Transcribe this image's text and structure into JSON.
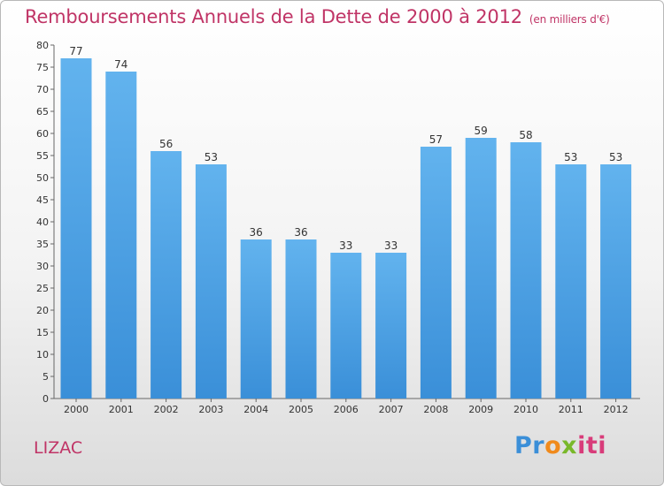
{
  "chart_data": {
    "type": "bar",
    "title": "Remboursements Annuels de la Dette de 2000 à 2012",
    "subtitle": "(en milliers d'€)",
    "categories": [
      "2000",
      "2001",
      "2002",
      "2003",
      "2004",
      "2005",
      "2006",
      "2007",
      "2008",
      "2009",
      "2010",
      "2011",
      "2012"
    ],
    "values": [
      77,
      74,
      56,
      53,
      36,
      36,
      33,
      33,
      57,
      59,
      58,
      53,
      53
    ],
    "ylim": [
      0,
      80
    ],
    "ytick_step": 5,
    "grid": false,
    "bar_color": "#3a8fd8",
    "bar_color_light": "#62b3ee"
  },
  "commune": "LIZAC",
  "logo": {
    "parts": [
      "Pr",
      "o",
      "x",
      "iti"
    ]
  },
  "colors": {
    "title": "#c03466"
  }
}
